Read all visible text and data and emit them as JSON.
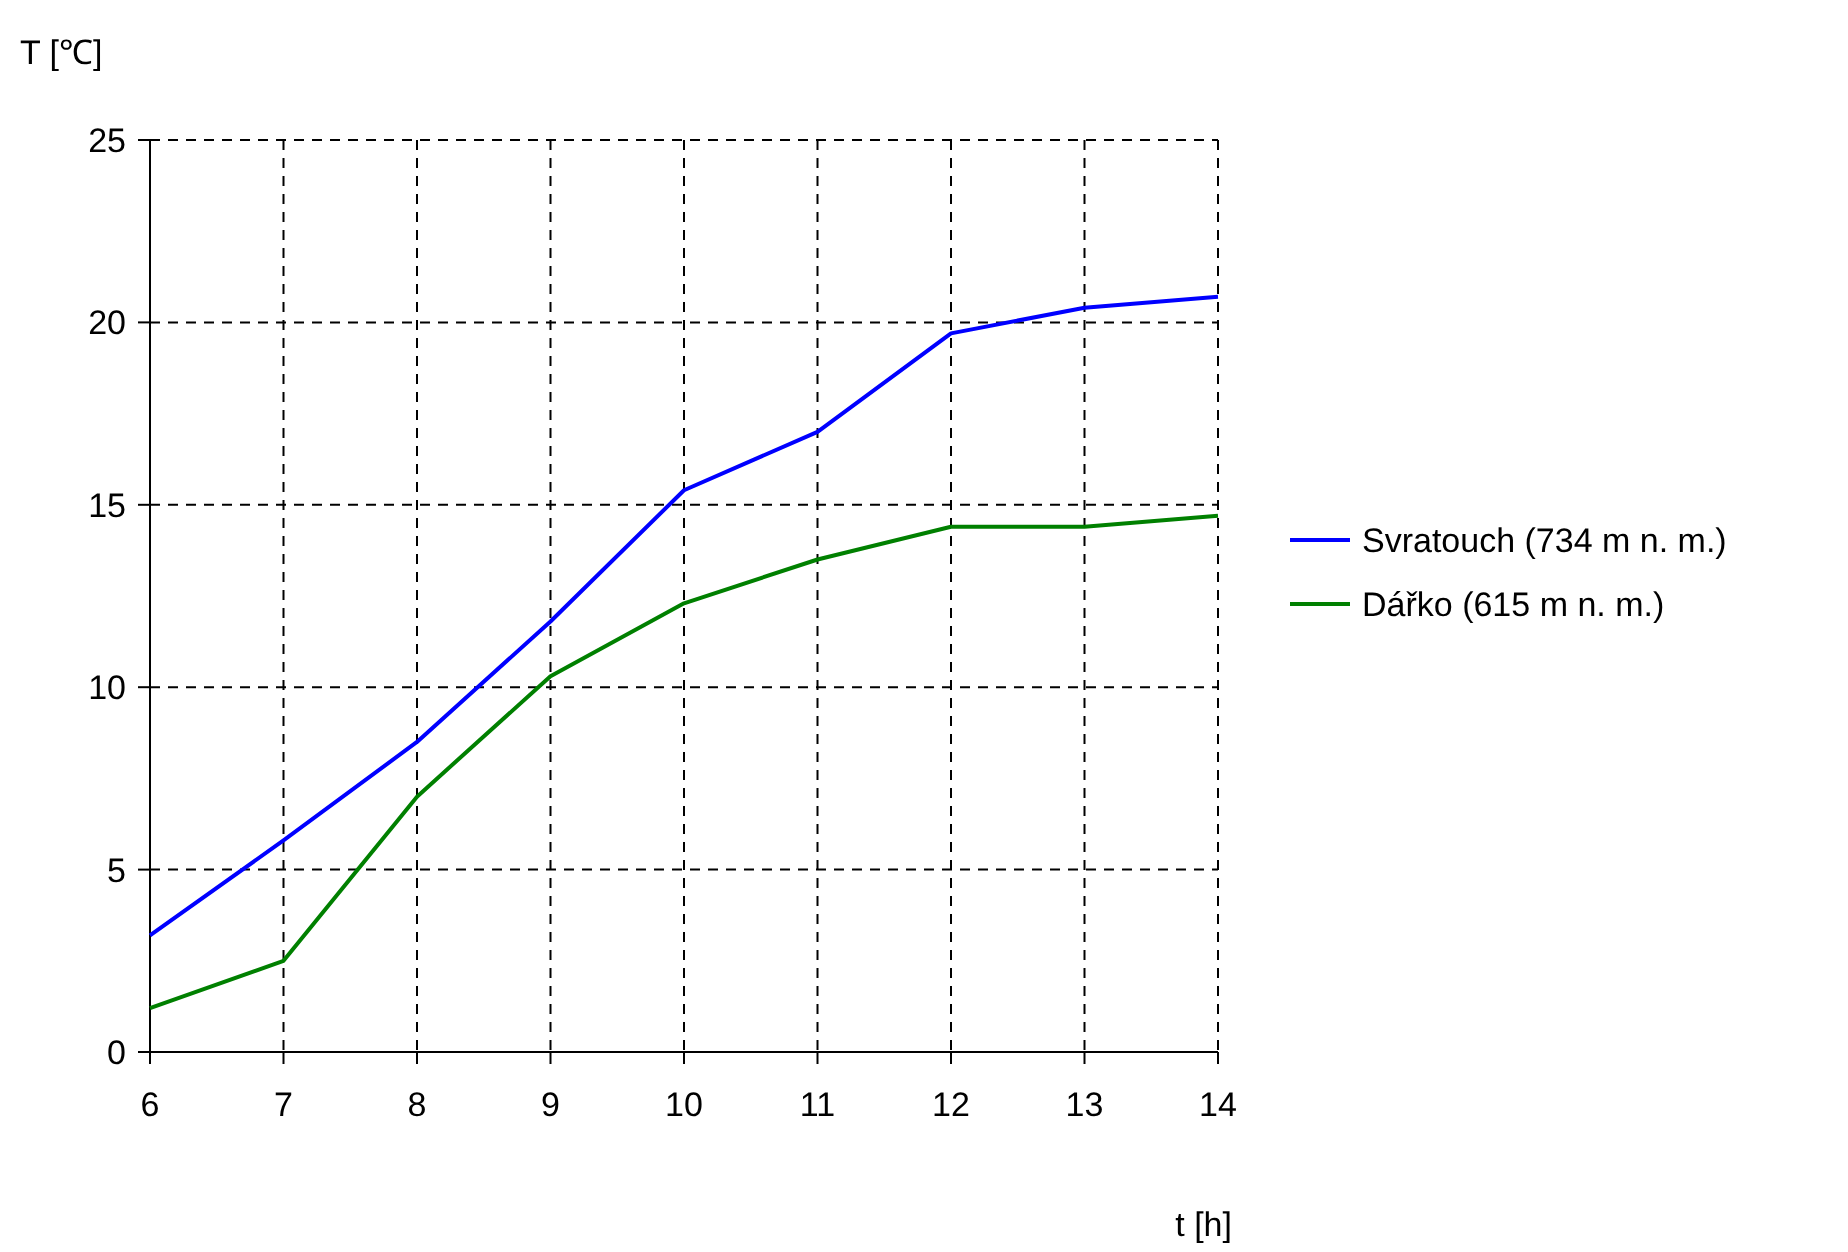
{
  "chart_data": {
    "type": "line",
    "xlabel": "t [h]",
    "ylabel": "T [℃]",
    "x": [
      6,
      7,
      8,
      9,
      10,
      11,
      12,
      13,
      14
    ],
    "series": [
      {
        "name": "Svratouch (734 m n. m.)",
        "color": "#0000ff",
        "values": [
          3.2,
          5.8,
          8.5,
          11.8,
          15.4,
          17.0,
          19.7,
          20.4,
          20.7
        ]
      },
      {
        "name": "Dářko (615 m n. m.)",
        "color": "#008000",
        "values": [
          1.2,
          2.5,
          7.0,
          10.3,
          12.3,
          13.5,
          14.4,
          14.4,
          14.7
        ]
      }
    ],
    "xlim": [
      6,
      14
    ],
    "xticks": [
      6,
      7,
      8,
      9,
      10,
      11,
      12,
      13,
      14
    ],
    "ylim": [
      0,
      25
    ],
    "yticks": [
      0,
      5,
      10,
      15,
      20,
      25
    ],
    "grid": true,
    "legend": "right",
    "marker": "none",
    "line_style": "solid"
  }
}
